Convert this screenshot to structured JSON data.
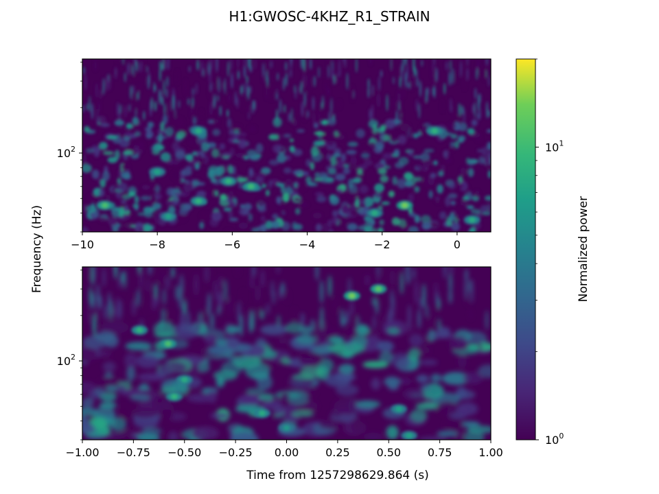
{
  "figure": {
    "title": "H1:GWOSC-4KHZ_R1_STRAIN",
    "ylabel": "Frequency (Hz)",
    "xlabel": "Time from 1257298629.864 (s)"
  },
  "colorbar": {
    "label": "Normalized power",
    "scale": "log",
    "range": [
      1,
      20
    ],
    "colormap": "viridis",
    "ticks": [
      {
        "value": 1,
        "base": "10",
        "exp": "0"
      },
      {
        "value": 10,
        "base": "10",
        "exp": "1"
      }
    ]
  },
  "chart_data": [
    {
      "type": "heatmap",
      "name": "Q-transform spectrogram (wide window)",
      "x_range": [
        -10,
        0.9
      ],
      "y_scale": "log",
      "y_range": [
        30,
        420
      ],
      "xticks": [
        "−10",
        "−8",
        "−6",
        "−4",
        "−2",
        "0"
      ],
      "xtick_values": [
        -10,
        -8,
        -6,
        -4,
        -2,
        0
      ],
      "yticks": [
        {
          "value": 100,
          "base": "10",
          "exp": "2"
        }
      ],
      "hotspots": [
        {
          "t": -1.4,
          "f": 45,
          "power": 14
        },
        {
          "t": -9.4,
          "f": 45,
          "power": 11
        },
        {
          "t": -6.9,
          "f": 48,
          "power": 9
        },
        {
          "t": -5.5,
          "f": 60,
          "power": 10
        },
        {
          "t": -6.1,
          "f": 65,
          "power": 9
        },
        {
          "t": 0.4,
          "f": 36,
          "power": 8
        },
        {
          "t": -7.7,
          "f": 38,
          "power": 7
        },
        {
          "t": -2.2,
          "f": 40,
          "power": 8
        },
        {
          "t": -0.6,
          "f": 140,
          "power": 9
        },
        {
          "t": -6.9,
          "f": 140,
          "power": 8
        },
        {
          "t": -8.0,
          "f": 75,
          "power": 7
        }
      ]
    },
    {
      "type": "heatmap",
      "name": "Q-transform spectrogram (narrow window)",
      "x_range": [
        -1,
        1
      ],
      "y_scale": "log",
      "y_range": [
        30,
        420
      ],
      "xticks": [
        "−1.00",
        "−0.75",
        "−0.50",
        "−0.25",
        "0.00",
        "0.25",
        "0.50",
        "0.75",
        "1.00"
      ],
      "xtick_values": [
        -1,
        -0.75,
        -0.5,
        -0.25,
        0,
        0.25,
        0.5,
        0.75,
        1
      ],
      "yticks": [
        {
          "value": 100,
          "base": "10",
          "exp": "2"
        }
      ],
      "hotspots": [
        {
          "t": 0.32,
          "f": 270,
          "power": 14
        },
        {
          "t": 0.45,
          "f": 300,
          "power": 12
        },
        {
          "t": -0.58,
          "f": 130,
          "power": 11
        },
        {
          "t": -0.72,
          "f": 160,
          "power": 9
        },
        {
          "t": -0.5,
          "f": 75,
          "power": 8
        },
        {
          "t": -0.55,
          "f": 58,
          "power": 9
        },
        {
          "t": -0.12,
          "f": 45,
          "power": 8
        },
        {
          "t": 0.55,
          "f": 48,
          "power": 7
        },
        {
          "t": 0.6,
          "f": 32,
          "power": 7
        },
        {
          "t": 0.0,
          "f": 36,
          "power": 6
        }
      ]
    }
  ]
}
